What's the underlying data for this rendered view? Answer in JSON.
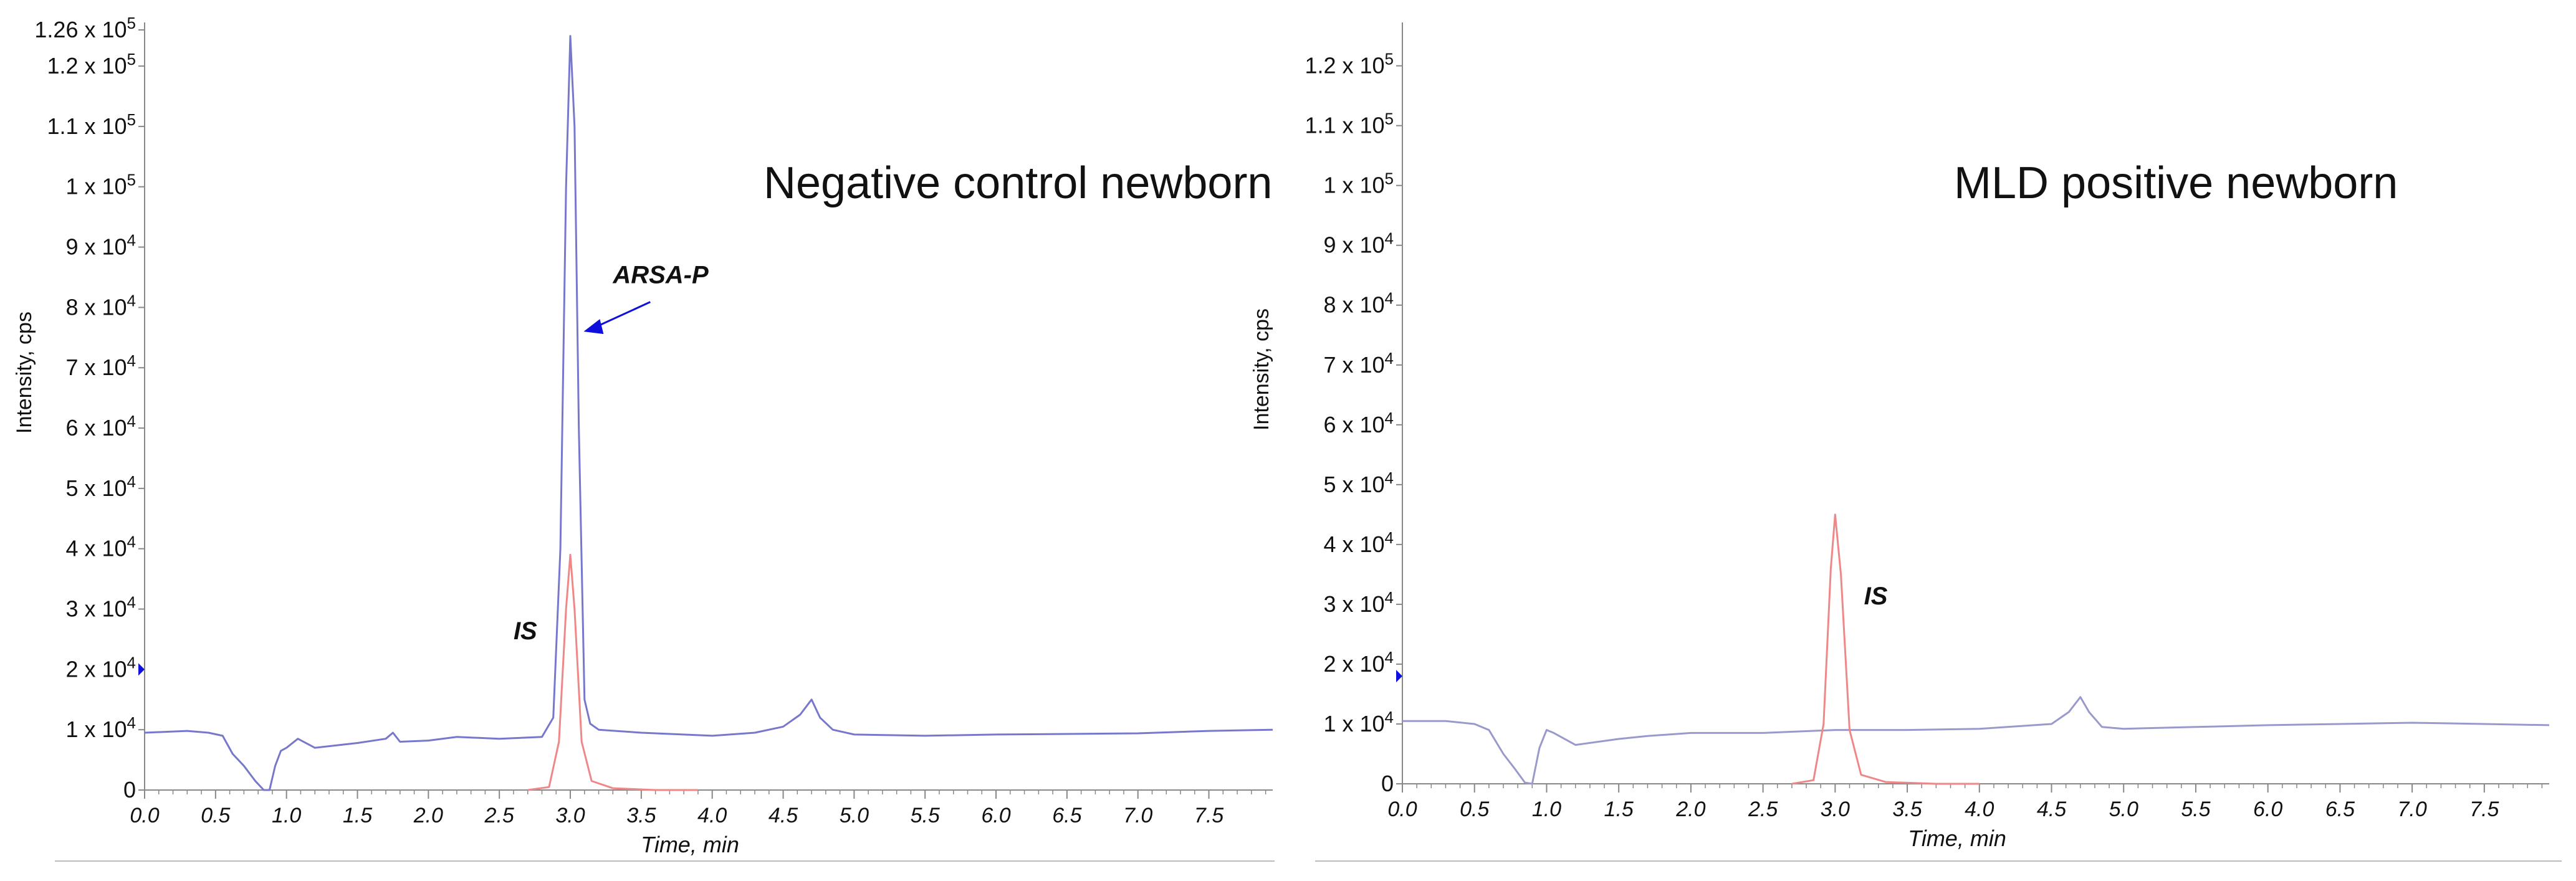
{
  "chart_data": [
    {
      "type": "line",
      "title": "Negative control newborn",
      "xlabel": "Time, min",
      "ylabel": "Intensity, cps",
      "xlim": [
        0,
        7.95
      ],
      "ylim": [
        0,
        126000
      ],
      "x_ticks": [
        "0.0",
        "0.5",
        "1.0",
        "1.5",
        "2.0",
        "2.5",
        "3.0",
        "3.5",
        "4.0",
        "4.5",
        "5.0",
        "5.5",
        "6.0",
        "6.5",
        "7.0",
        "7.5"
      ],
      "y_ticks": [
        {
          "value": 126000,
          "mant": "1.26 x 10",
          "exp": "5"
        },
        {
          "value": 120000,
          "mant": "1.2 x 10",
          "exp": "5"
        },
        {
          "value": 110000,
          "mant": "1.1 x 10",
          "exp": "5"
        },
        {
          "value": 100000,
          "mant": "1 x 10",
          "exp": "5"
        },
        {
          "value": 90000,
          "mant": "9 x 10",
          "exp": "4"
        },
        {
          "value": 80000,
          "mant": "8 x 10",
          "exp": "4"
        },
        {
          "value": 70000,
          "mant": "7 x 10",
          "exp": "4"
        },
        {
          "value": 60000,
          "mant": "6 x 10",
          "exp": "4"
        },
        {
          "value": 50000,
          "mant": "5 x 10",
          "exp": "4"
        },
        {
          "value": 40000,
          "mant": "4 x 10",
          "exp": "4"
        },
        {
          "value": 30000,
          "mant": "3 x 10",
          "exp": "4"
        },
        {
          "value": 20000,
          "mant": "2 x 10",
          "exp": "4"
        },
        {
          "value": 10000,
          "mant": "1 x 10",
          "exp": "4"
        },
        {
          "value": 0,
          "mant": "0",
          "exp": ""
        }
      ],
      "marker_value": 20000,
      "annotations": [
        {
          "text": "ARSA-P",
          "x": 3.3,
          "y": 84000,
          "arrow_to": [
            3.05,
            76000
          ]
        },
        {
          "text": "IS",
          "x": 2.6,
          "y": 25000
        }
      ],
      "series": [
        {
          "color": "#7777cc",
          "x": [
            0.0,
            0.3,
            0.45,
            0.55,
            0.62,
            0.7,
            0.78,
            0.84,
            0.88,
            0.92,
            0.96,
            1.0,
            1.08,
            1.2,
            1.5,
            1.7,
            1.75,
            1.8,
            2.0,
            2.2,
            2.5,
            2.8,
            2.88,
            2.93,
            2.97,
            3.0,
            3.03,
            3.06,
            3.1,
            3.14,
            3.2,
            3.5,
            4.0,
            4.3,
            4.5,
            4.62,
            4.7,
            4.76,
            4.85,
            5.0,
            5.5,
            6.0,
            6.5,
            7.0,
            7.5,
            7.95
          ],
          "y": [
            9500,
            9800,
            9500,
            9000,
            6000,
            4000,
            1500,
            0,
            0,
            4000,
            6500,
            7000,
            8500,
            7000,
            7800,
            8500,
            9500,
            8000,
            8200,
            8800,
            8500,
            8800,
            12000,
            40000,
            100000,
            125000,
            110000,
            60000,
            15000,
            11000,
            10000,
            9500,
            9000,
            9500,
            10500,
            12500,
            15000,
            12000,
            10000,
            9200,
            9000,
            9200,
            9300,
            9400,
            9800,
            10000
          ]
        },
        {
          "color": "#ee8888",
          "x": [
            2.7,
            2.85,
            2.92,
            2.97,
            3.0,
            3.03,
            3.08,
            3.15,
            3.3,
            3.6,
            3.9
          ],
          "y": [
            0,
            500,
            8000,
            30000,
            39000,
            30000,
            8000,
            1500,
            300,
            0,
            0
          ]
        }
      ]
    },
    {
      "type": "line",
      "title": "MLD positive newborn",
      "xlabel": "Time, min",
      "ylabel": "Intensity, cps",
      "xlim": [
        0,
        7.95
      ],
      "ylim": [
        0,
        126000
      ],
      "x_ticks": [
        "0.0",
        "0.5",
        "1.0",
        "1.5",
        "2.0",
        "2.5",
        "3.0",
        "3.5",
        "4.0",
        "4.5",
        "5.0",
        "5.5",
        "6.0",
        "6.5",
        "7.0",
        "7.5"
      ],
      "y_ticks": [
        {
          "value": 120000,
          "mant": "1.2 x 10",
          "exp": "5"
        },
        {
          "value": 110000,
          "mant": "1.1 x 10",
          "exp": "5"
        },
        {
          "value": 100000,
          "mant": "1 x 10",
          "exp": "5"
        },
        {
          "value": 90000,
          "mant": "9 x 10",
          "exp": "4"
        },
        {
          "value": 80000,
          "mant": "8 x 10",
          "exp": "4"
        },
        {
          "value": 70000,
          "mant": "7 x 10",
          "exp": "4"
        },
        {
          "value": 60000,
          "mant": "6 x 10",
          "exp": "4"
        },
        {
          "value": 50000,
          "mant": "5 x 10",
          "exp": "4"
        },
        {
          "value": 40000,
          "mant": "4 x 10",
          "exp": "4"
        },
        {
          "value": 30000,
          "mant": "3 x 10",
          "exp": "4"
        },
        {
          "value": 20000,
          "mant": "2 x 10",
          "exp": "4"
        },
        {
          "value": 10000,
          "mant": "1 x 10",
          "exp": "4"
        },
        {
          "value": 0,
          "mant": "0",
          "exp": ""
        }
      ],
      "marker_value": 18000,
      "annotations": [
        {
          "text": "IS",
          "x": 3.2,
          "y": 30000
        }
      ],
      "series": [
        {
          "color": "#9999cc",
          "x": [
            0.0,
            0.3,
            0.5,
            0.6,
            0.7,
            0.78,
            0.85,
            0.9,
            0.95,
            1.0,
            1.05,
            1.2,
            1.5,
            1.7,
            2.0,
            2.5,
            3.0,
            3.5,
            4.0,
            4.5,
            4.62,
            4.7,
            4.76,
            4.85,
            5.0,
            5.5,
            6.0,
            6.5,
            7.0,
            7.5,
            7.95
          ],
          "y": [
            10500,
            10500,
            10000,
            9000,
            5000,
            2500,
            200,
            0,
            6000,
            9000,
            8500,
            6500,
            7500,
            8000,
            8500,
            8500,
            9000,
            9000,
            9200,
            10000,
            12000,
            14500,
            12000,
            9500,
            9200,
            9500,
            9800,
            10000,
            10200,
            10000,
            9800
          ]
        },
        {
          "color": "#ee8888",
          "x": [
            2.7,
            2.85,
            2.92,
            2.97,
            3.0,
            3.04,
            3.1,
            3.18,
            3.35,
            3.7,
            4.0
          ],
          "y": [
            0,
            600,
            10000,
            36000,
            45000,
            35000,
            9000,
            1500,
            300,
            0,
            0
          ]
        }
      ]
    }
  ]
}
